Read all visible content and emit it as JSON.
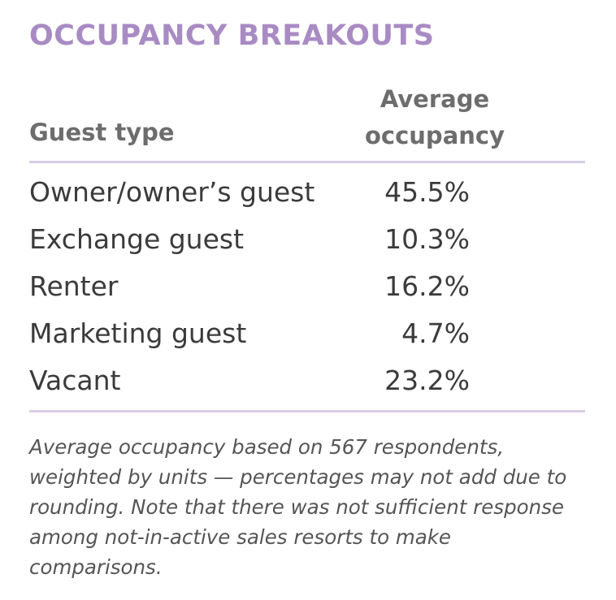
{
  "title": "OCCUPANCY BREAKOUTS",
  "table": {
    "header": [
      "Guest type",
      "Average occupancy"
    ],
    "rows": [
      [
        "Owner/owner’s guest",
        "45.5%"
      ],
      [
        "Exchange guest",
        "10.3%"
      ],
      [
        "Renter",
        "16.2%"
      ],
      [
        "Marketing guest",
        "4.7%"
      ],
      [
        "Vacant",
        "23.2%"
      ]
    ]
  },
  "footnote": "Average occupancy based on 567 respondents, weighted by units — percentages may not add due to rounding. Note that there was not sufficient response among not-in-active sales resorts to make comparisons."
}
